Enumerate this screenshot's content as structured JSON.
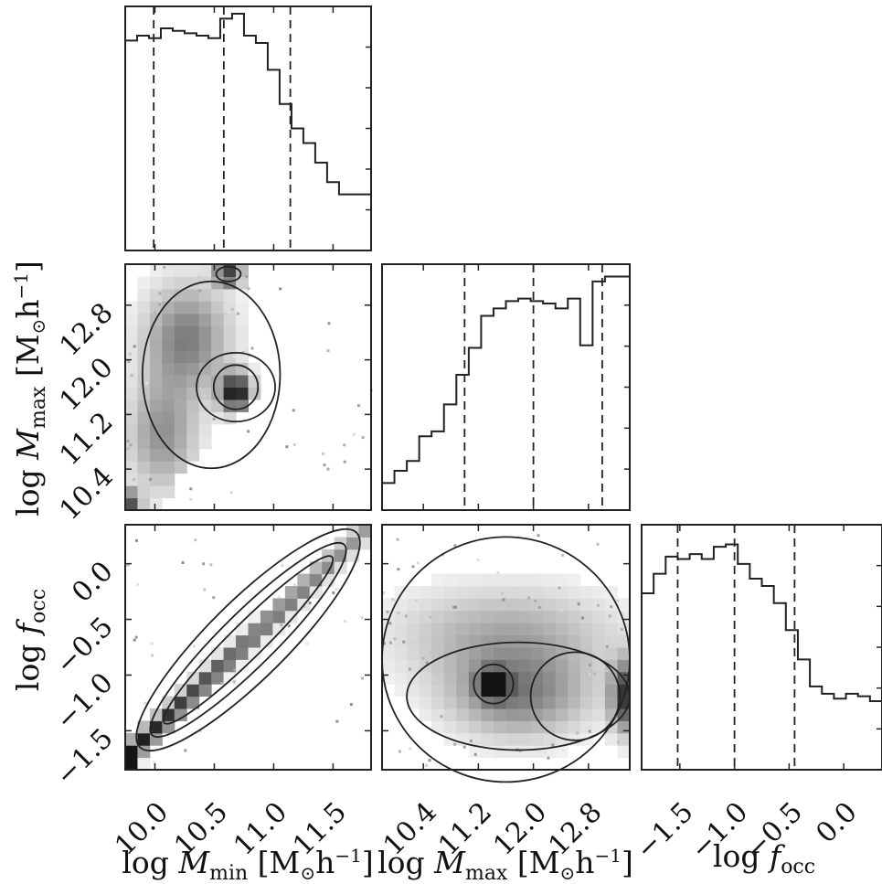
{
  "chart_data": {
    "type": "corner",
    "parameters": [
      {
        "key": "log_mmin",
        "label_html": "log M<tspan font-style='italic'></tspan>",
        "label_main": "log ",
        "label_var": "M",
        "label_sub": "min",
        "label_units": "[M",
        "label_units_sub": "⊙",
        "label_units_tail": "h",
        "label_units_sup": "−1",
        "label_units_close": "]",
        "range": [
          9.75,
          11.82
        ],
        "ticks": [
          10.0,
          10.5,
          11.0,
          11.5
        ],
        "tick_labels": [
          "10.0",
          "10.5",
          "11.0",
          "11.5"
        ],
        "quantiles": [
          9.99,
          10.58,
          11.14
        ],
        "histogram": {
          "edges": [
            9.75,
            9.85,
            9.95,
            10.05,
            10.15,
            10.25,
            10.35,
            10.45,
            10.55,
            10.65,
            10.75,
            10.85,
            10.95,
            11.05,
            11.15,
            11.25,
            11.35,
            11.45,
            11.55,
            11.65,
            11.82
          ],
          "counts": [
            0.86,
            0.88,
            0.87,
            0.91,
            0.9,
            0.89,
            0.88,
            0.87,
            0.95,
            0.97,
            0.88,
            0.85,
            0.74,
            0.6,
            0.5,
            0.44,
            0.36,
            0.28,
            0.23,
            0.23
          ]
        }
      },
      {
        "key": "log_mmax",
        "label_main": "log ",
        "label_var": "M",
        "label_sub": "max",
        "label_units": "[M",
        "label_units_sub": "⊙",
        "label_units_tail": "h",
        "label_units_sup": "−1",
        "label_units_close": "]",
        "range": [
          9.8,
          13.4
        ],
        "ticks": [
          10.4,
          11.2,
          12.0,
          12.8
        ],
        "tick_labels": [
          "10.4",
          "11.2",
          "12.0",
          "12.8"
        ],
        "quantiles": [
          11.0,
          12.0,
          13.0
        ],
        "histogram": {
          "edges": [
            9.8,
            9.98,
            10.16,
            10.34,
            10.52,
            10.7,
            10.88,
            11.06,
            11.24,
            11.42,
            11.6,
            11.78,
            11.96,
            12.14,
            12.32,
            12.5,
            12.68,
            12.86,
            13.04,
            13.22,
            13.4
          ],
          "counts": [
            0.11,
            0.16,
            0.2,
            0.3,
            0.32,
            0.43,
            0.55,
            0.66,
            0.79,
            0.82,
            0.85,
            0.86,
            0.85,
            0.84,
            0.82,
            0.86,
            0.67,
            0.93,
            0.95,
            0.95
          ]
        }
      },
      {
        "key": "log_focc",
        "label_main": "log ",
        "label_var": "f",
        "label_sub": "occ",
        "range": [
          -1.85,
          0.35
        ],
        "ticks": [
          -1.5,
          -1.0,
          -0.5,
          0.0
        ],
        "tick_labels": [
          "−1.5",
          "−1.0",
          "−0.5",
          "0.0"
        ],
        "quantiles": [
          -1.52,
          -1.0,
          -0.45
        ],
        "histogram": {
          "edges": [
            -1.85,
            -1.74,
            -1.63,
            -1.52,
            -1.41,
            -1.3,
            -1.19,
            -1.08,
            -0.97,
            -0.86,
            -0.75,
            -0.64,
            -0.53,
            -0.42,
            -0.31,
            -0.2,
            -0.09,
            0.02,
            0.13,
            0.24,
            0.35
          ],
          "counts": [
            0.72,
            0.8,
            0.87,
            0.86,
            0.88,
            0.86,
            0.91,
            0.92,
            0.84,
            0.78,
            0.75,
            0.68,
            0.57,
            0.45,
            0.34,
            0.31,
            0.29,
            0.31,
            0.3,
            0.28
          ]
        }
      }
    ],
    "grid": false,
    "legend": "none"
  }
}
